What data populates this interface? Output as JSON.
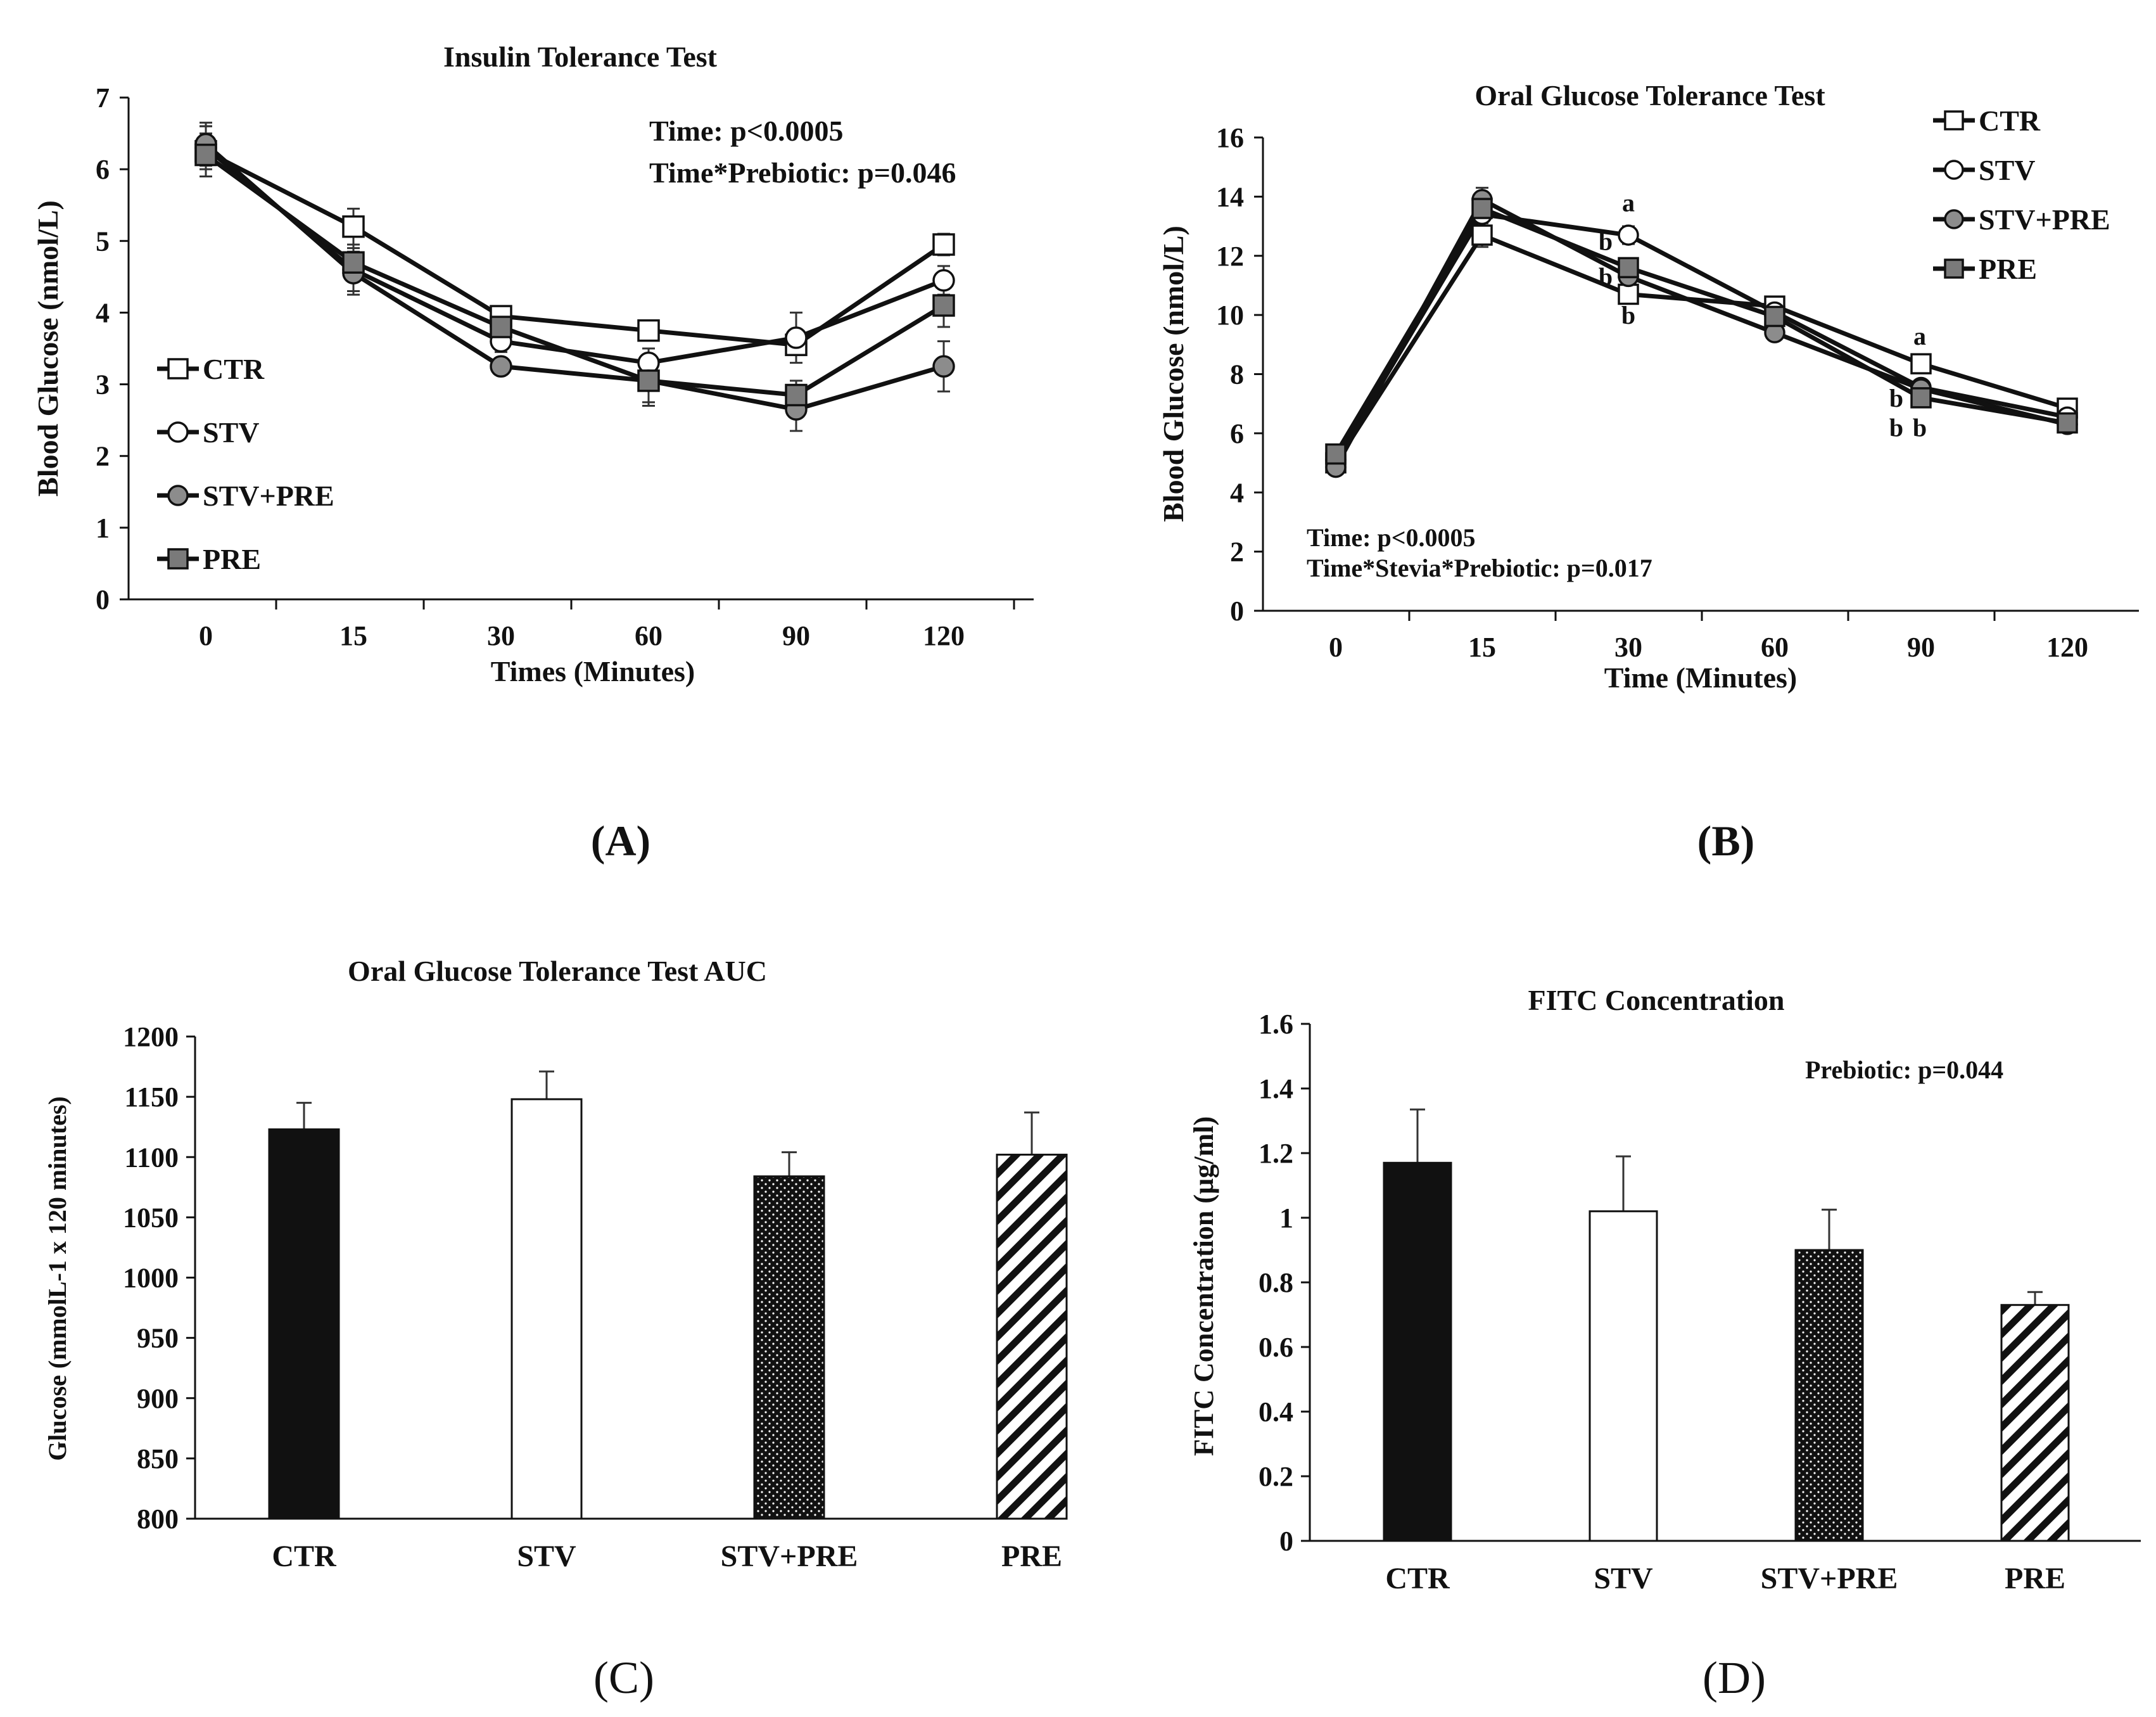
{
  "chart_data": [
    {
      "panel": "(A)",
      "type": "line",
      "title": "Insulin Tolerance Test",
      "xlabel": "Times (Minutes)",
      "ylabel": "Blood Glucose (nmol/L)",
      "categories": [
        "0",
        "15",
        "30",
        "60",
        "90",
        "120"
      ],
      "ylim": [
        0,
        7
      ],
      "yticks": [
        0,
        1,
        2,
        3,
        4,
        5,
        6,
        7
      ],
      "legend": "left",
      "series": [
        {
          "name": "CTR",
          "marker": "square-open",
          "values": [
            6.25,
            5.2,
            3.95,
            3.75,
            3.55,
            4.95
          ],
          "errors": [
            0.35,
            0.25,
            0.1,
            0.1,
            0.1,
            0.15
          ]
        },
        {
          "name": "STV",
          "marker": "circle-open",
          "values": [
            6.3,
            4.6,
            3.6,
            3.3,
            3.65,
            4.45
          ],
          "errors": [
            0.3,
            0.3,
            0.15,
            0.2,
            0.35,
            0.2
          ]
        },
        {
          "name": "STV+PRE",
          "marker": "circle-filled",
          "values": [
            6.35,
            4.55,
            3.25,
            3.05,
            2.65,
            3.25
          ],
          "errors": [
            0.3,
            0.3,
            0.1,
            0.35,
            0.3,
            0.35
          ]
        },
        {
          "name": "PRE",
          "marker": "square-filled",
          "values": [
            6.2,
            4.7,
            3.8,
            3.05,
            2.85,
            4.1
          ],
          "errors": [
            0.3,
            0.25,
            0.15,
            0.3,
            0.2,
            0.3
          ]
        }
      ],
      "annotations": [
        "Time: p<0.0005",
        "Time*Prebiotic: p=0.046"
      ]
    },
    {
      "panel": "(B)",
      "type": "line",
      "title": "Oral Glucose Tolerance Test",
      "xlabel": "Time (Minutes)",
      "ylabel": "Blood Glucose (nmol/L)",
      "categories": [
        "0",
        "15",
        "30",
        "60",
        "90",
        "120"
      ],
      "ylim": [
        0,
        16
      ],
      "yticks": [
        0,
        2,
        4,
        6,
        8,
        10,
        12,
        14,
        16
      ],
      "legend": "top-right",
      "series": [
        {
          "name": "CTR",
          "marker": "square-open",
          "values": [
            5.0,
            12.7,
            10.7,
            10.3,
            8.35,
            6.85
          ],
          "errors": [
            0.2,
            0.4,
            0.3,
            0.2,
            0.2,
            0.15
          ]
        },
        {
          "name": "STV",
          "marker": "circle-open",
          "values": [
            5.1,
            13.4,
            12.7,
            10.1,
            7.55,
            6.55
          ],
          "errors": [
            0.2,
            0.4,
            0.3,
            0.2,
            0.2,
            0.15
          ]
        },
        {
          "name": "STV+PRE",
          "marker": "circle-filled",
          "values": [
            4.85,
            13.9,
            11.3,
            9.4,
            7.5,
            6.3
          ],
          "errors": [
            0.2,
            0.4,
            0.3,
            0.2,
            0.2,
            0.15
          ]
        },
        {
          "name": "PRE",
          "marker": "square-filled",
          "values": [
            5.3,
            13.6,
            11.6,
            9.95,
            7.2,
            6.35
          ],
          "errors": [
            0.2,
            0.4,
            0.3,
            0.2,
            0.2,
            0.15
          ]
        }
      ],
      "letters": [
        {
          "text": "a",
          "x": "30",
          "y": 13.5
        },
        {
          "text": "b",
          "x": "30",
          "y": 12.2
        },
        {
          "text": "b",
          "x": "30",
          "y": 11.0
        },
        {
          "text": "b",
          "x": "30",
          "y": 9.7
        },
        {
          "text": "a",
          "x": "90",
          "y": 9.0
        },
        {
          "text": "b",
          "x": "90",
          "y": 6.9
        },
        {
          "text": "b",
          "x": "90",
          "y": 5.9
        },
        {
          "text": "b",
          "x": "90",
          "y": 5.9
        }
      ],
      "annotations": [
        "Time: p<0.0005",
        "Time*Stevia*Prebiotic: p=0.017"
      ]
    },
    {
      "panel": "(C)",
      "type": "bar",
      "title": "Oral Glucose Tolerance Test AUC",
      "xlabel": "",
      "ylabel": "Glucose (mmolL-1 x 120 minutes)",
      "categories": [
        "CTR",
        "STV",
        "STV+PRE",
        "PRE"
      ],
      "values": [
        1123,
        1148,
        1084,
        1102
      ],
      "errors": [
        22,
        23,
        20,
        35
      ],
      "fills": [
        "solid",
        "white",
        "dots",
        "hatch"
      ],
      "ylim": [
        800,
        1200
      ],
      "yticks": [
        800,
        850,
        900,
        950,
        1000,
        1050,
        1100,
        1150,
        1200
      ]
    },
    {
      "panel": "(D)",
      "type": "bar",
      "title": "FITC Concentration",
      "xlabel": "",
      "ylabel": "FITC Concentration (µg/ml)",
      "categories": [
        "CTR",
        "STV",
        "STV+PRE",
        "PRE"
      ],
      "values": [
        1.17,
        1.02,
        0.9,
        0.73
      ],
      "errors": [
        0.165,
        0.17,
        0.125,
        0.04
      ],
      "fills": [
        "solid",
        "white",
        "dots",
        "hatch"
      ],
      "ylim": [
        0,
        1.6
      ],
      "yticks": [
        "0",
        "0.2",
        "0.4",
        "0.6",
        "0.8",
        "1",
        "1.2",
        "1.4",
        "1.6"
      ],
      "annotations": [
        "Prebiotic: p=0.044"
      ]
    }
  ],
  "colors": {
    "ink": "#111111",
    "open_marker_fill": "#ffffff",
    "filled_circle": "#8c8c8c",
    "filled_square": "#7a7a7a",
    "error_bar": "#333333"
  }
}
